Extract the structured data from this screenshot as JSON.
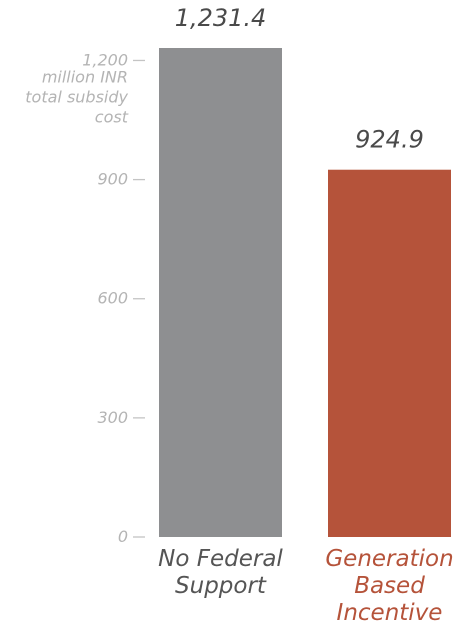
{
  "chart_data": {
    "type": "bar",
    "categories": [
      "No Federal Support",
      "Generation Based Incentive"
    ],
    "category_label_lines": [
      [
        "No Federal",
        "Support"
      ],
      [
        "Generation",
        "Based",
        "Incentive"
      ]
    ],
    "values": [
      1231.4,
      924.9
    ],
    "value_labels": [
      "1,231.4",
      "924.9"
    ],
    "bar_colors": [
      "#8e8f91",
      "#b5533a"
    ],
    "category_label_colors": [
      "#555555",
      "#b5533a"
    ],
    "ylabel_lines": [
      "million INR",
      "total subsidy",
      "cost"
    ],
    "ylim": [
      0,
      1231.4
    ],
    "yticks": [
      0,
      300,
      600,
      900,
      1200
    ],
    "ytick_labels": [
      "0",
      "300",
      "600",
      "900",
      "1,200"
    ],
    "grid": false,
    "legend": "none"
  }
}
